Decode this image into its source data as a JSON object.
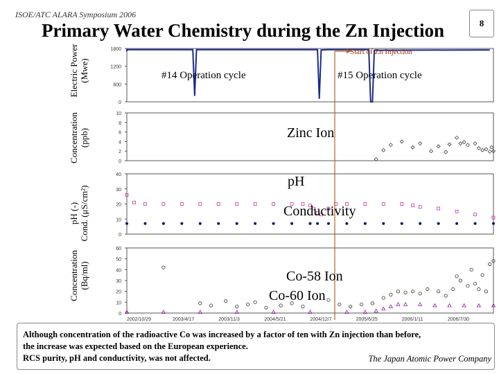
{
  "header": "ISOE/ATC ALARA Symposium 2006",
  "title": "Primary Water Chemistry during the Zn Injection",
  "page_number": "8",
  "annotations": {
    "start_zn": "Start of Zn Injection",
    "cycle14": "#14 Operation cycle",
    "cycle15": "#15 Operation cycle",
    "zinc": "Zinc Ion",
    "ph": "pH",
    "conductivity": "Conductivity",
    "co58": "Co-58 Ion",
    "co60": "Co-60 Ion"
  },
  "ylabels": {
    "power_a": "Electric Power",
    "power_b": "(Mwe)",
    "zinc_a": "Concentration",
    "zinc_b": "(ppb)",
    "ph_a": "pH (-)",
    "ph_b": "Cond. (μS/cm²)",
    "co_a": "Concentration",
    "co_b": "(Bq/ml)"
  },
  "footer": {
    "line1": "Although concentration of the radioactive Co was increased by a factor of ten with Zn injection than before,",
    "line2": "the increase was expected based on the European experience.",
    "line3": "RCS purity, pH and conductivity, was not affected.",
    "company": "The Japan Atomic Power Company"
  },
  "chart_data": [
    {
      "type": "line",
      "name": "electric-power",
      "ylim": [
        0,
        1800
      ],
      "ticks": [
        "1800",
        "1200",
        "600",
        "0"
      ],
      "series": [
        {
          "name": "Electric Power",
          "values": [
            [
              0.0,
              1700
            ],
            [
              0.0,
              1760
            ],
            [
              0.02,
              1760
            ],
            [
              0.17,
              1758
            ],
            [
              0.18,
              1758
            ],
            [
              0.185,
              200
            ],
            [
              0.19,
              1758
            ],
            [
              0.3,
              1760
            ],
            [
              0.52,
              1760
            ],
            [
              0.525,
              100
            ],
            [
              0.53,
              1750
            ],
            [
              0.55,
              1760
            ],
            [
              0.66,
              1760
            ],
            [
              0.665,
              0
            ],
            [
              0.67,
              0
            ],
            [
              0.675,
              1740
            ],
            [
              0.99,
              1750
            ]
          ]
        }
      ]
    },
    {
      "type": "scatter",
      "name": "zinc",
      "ylim": [
        0,
        10
      ],
      "ticks": [
        "10",
        "8",
        "6",
        "4",
        "2",
        "0"
      ],
      "series": [
        {
          "name": "Zinc Ion",
          "values": [
            [
              0.68,
              0.3
            ],
            [
              0.7,
              2.2
            ],
            [
              0.72,
              3.3
            ],
            [
              0.75,
              4.0
            ],
            [
              0.78,
              2.8
            ],
            [
              0.8,
              3.6
            ],
            [
              0.83,
              2.0
            ],
            [
              0.85,
              3.0
            ],
            [
              0.87,
              1.8
            ],
            [
              0.88,
              3.4
            ],
            [
              0.9,
              4.8
            ],
            [
              0.91,
              3.6
            ],
            [
              0.92,
              3.9
            ],
            [
              0.93,
              3.3
            ],
            [
              0.95,
              3.6
            ],
            [
              0.96,
              2.6
            ],
            [
              0.97,
              2.2
            ],
            [
              0.98,
              2.4
            ],
            [
              0.99,
              1.9
            ],
            [
              0.995,
              2.8
            ],
            [
              1.0,
              2.0
            ]
          ]
        }
      ]
    },
    {
      "type": "scatter",
      "name": "ph-conductivity",
      "ylim": [
        0,
        40
      ],
      "ticks": [
        "40",
        "30",
        "20",
        "10",
        "0"
      ],
      "series": [
        {
          "name": "pH",
          "values": [
            [
              0.0,
              7.0
            ],
            [
              0.05,
              7.0
            ],
            [
              0.1,
              7.0
            ],
            [
              0.15,
              7.0
            ],
            [
              0.2,
              7.0
            ],
            [
              0.25,
              7.0
            ],
            [
              0.3,
              7.0
            ],
            [
              0.35,
              7.0
            ],
            [
              0.4,
              7.0
            ],
            [
              0.45,
              7.0
            ],
            [
              0.5,
              7.0
            ],
            [
              0.52,
              7.0
            ],
            [
              0.55,
              7.0
            ],
            [
              0.6,
              7.0
            ],
            [
              0.65,
              7.0
            ],
            [
              0.7,
              7.0
            ],
            [
              0.75,
              7.0
            ],
            [
              0.8,
              7.0
            ],
            [
              0.85,
              7.0
            ],
            [
              0.9,
              7.0
            ],
            [
              0.95,
              7.0
            ],
            [
              1.0,
              7.0
            ]
          ]
        },
        {
          "name": "Conductivity",
          "values": [
            [
              0.0,
              26
            ],
            [
              0.02,
              21
            ],
            [
              0.05,
              20
            ],
            [
              0.1,
              20
            ],
            [
              0.15,
              20
            ],
            [
              0.2,
              20
            ],
            [
              0.25,
              20
            ],
            [
              0.3,
              20
            ],
            [
              0.35,
              20
            ],
            [
              0.4,
              20
            ],
            [
              0.45,
              20
            ],
            [
              0.48,
              20
            ],
            [
              0.5,
              19
            ],
            [
              0.51,
              17
            ],
            [
              0.52,
              14
            ],
            [
              0.53,
              13
            ],
            [
              0.55,
              17
            ],
            [
              0.57,
              20
            ],
            [
              0.6,
              20
            ],
            [
              0.65,
              20
            ],
            [
              0.7,
              20
            ],
            [
              0.75,
              20
            ],
            [
              0.78,
              19
            ],
            [
              0.8,
              18
            ],
            [
              0.85,
              17
            ],
            [
              0.9,
              15
            ],
            [
              0.95,
              13
            ],
            [
              1.0,
              11
            ]
          ]
        }
      ]
    },
    {
      "type": "scatter",
      "name": "cobalt",
      "ylim": [
        0,
        60
      ],
      "ticks": [
        "60",
        "50",
        "40",
        "30",
        "20",
        "10",
        "0"
      ],
      "x_tick_labels": [
        "2002/10/29",
        "2003/4/17",
        "2003/11/3",
        "2004/5/21",
        "2004/12/7",
        "2005/6/25",
        "2006/1/11",
        "2006/7/30"
      ],
      "series": [
        {
          "name": "Co-58 Ion",
          "values": [
            [
              0.1,
              42
            ],
            [
              0.2,
              9
            ],
            [
              0.23,
              7
            ],
            [
              0.27,
              11
            ],
            [
              0.3,
              6
            ],
            [
              0.33,
              8
            ],
            [
              0.35,
              10
            ],
            [
              0.38,
              5
            ],
            [
              0.42,
              7
            ],
            [
              0.45,
              9
            ],
            [
              0.48,
              6
            ],
            [
              0.55,
              12
            ],
            [
              0.58,
              8
            ],
            [
              0.61,
              6
            ],
            [
              0.64,
              8
            ],
            [
              0.67,
              9
            ],
            [
              0.7,
              14
            ],
            [
              0.72,
              17
            ],
            [
              0.74,
              20
            ],
            [
              0.76,
              19
            ],
            [
              0.78,
              20
            ],
            [
              0.8,
              18
            ],
            [
              0.82,
              22
            ],
            [
              0.85,
              20
            ],
            [
              0.87,
              16
            ],
            [
              0.89,
              22
            ],
            [
              0.9,
              34
            ],
            [
              0.91,
              30
            ],
            [
              0.93,
              25
            ],
            [
              0.94,
              40
            ],
            [
              0.95,
              27
            ],
            [
              0.96,
              22
            ],
            [
              0.97,
              35
            ],
            [
              0.98,
              20
            ],
            [
              0.99,
              45
            ],
            [
              1.0,
              48
            ]
          ]
        },
        {
          "name": "Co-60 Ion",
          "values": [
            [
              0.0,
              1
            ],
            [
              0.1,
              1
            ],
            [
              0.2,
              1
            ],
            [
              0.3,
              1
            ],
            [
              0.4,
              1
            ],
            [
              0.5,
              1
            ],
            [
              0.6,
              1
            ],
            [
              0.65,
              1
            ],
            [
              0.68,
              2
            ],
            [
              0.7,
              4
            ],
            [
              0.72,
              6
            ],
            [
              0.74,
              8
            ],
            [
              0.76,
              8
            ],
            [
              0.8,
              8
            ],
            [
              0.84,
              7
            ],
            [
              0.88,
              7
            ],
            [
              0.92,
              7
            ],
            [
              0.96,
              7
            ],
            [
              1.0,
              7
            ]
          ]
        }
      ]
    }
  ]
}
